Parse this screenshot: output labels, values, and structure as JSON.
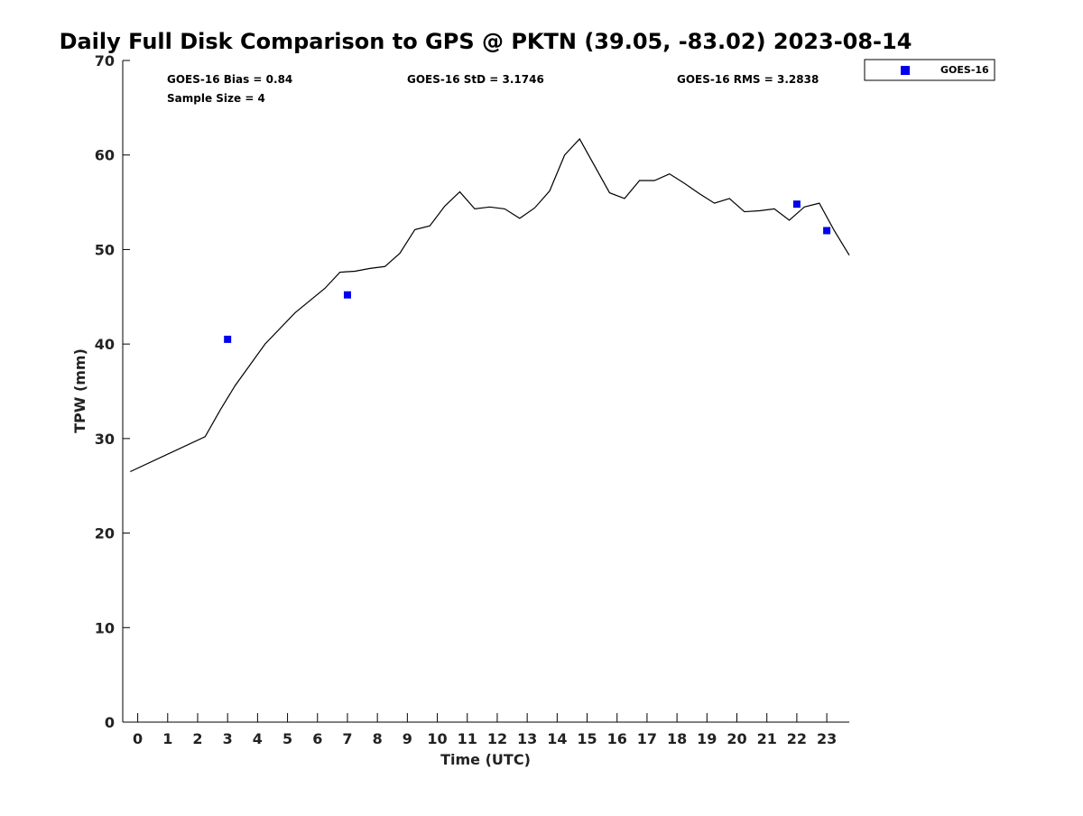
{
  "chart_data": {
    "type": "line",
    "title": "Daily Full Disk Comparison to GPS @ PKTN (39.05, -83.02) 2023-08-14",
    "xlabel": "Time (UTC)",
    "ylabel": "TPW (mm)",
    "xlim": [
      -0.5,
      23.75
    ],
    "ylim": [
      0,
      70
    ],
    "x_ticks": [
      0,
      1,
      2,
      3,
      4,
      5,
      6,
      7,
      8,
      9,
      10,
      11,
      12,
      13,
      14,
      15,
      16,
      17,
      18,
      19,
      20,
      21,
      22,
      23
    ],
    "y_ticks": [
      0,
      10,
      20,
      30,
      40,
      50,
      60,
      70
    ],
    "grid": false,
    "legend_position": "top-right",
    "stats": {
      "bias": "GOES-16 Bias = 0.84",
      "sample_size": "Sample Size = 4",
      "std": "GOES-16 StD = 3.1746",
      "rms": "GOES-16 RMS = 3.2838"
    },
    "series": [
      {
        "style": "line",
        "color": "#000000",
        "x": [
          -0.25,
          2.25,
          2.75,
          3.25,
          4.25,
          5.25,
          6.25,
          6.75,
          7.25,
          7.75,
          8.25,
          8.75,
          9.25,
          9.75,
          10.25,
          10.75,
          11.25,
          11.75,
          12.25,
          12.75,
          13.25,
          13.75,
          14.25,
          14.75,
          15.75,
          16.25,
          16.75,
          17.25,
          17.75,
          18.25,
          18.75,
          19.25,
          19.75,
          20.25,
          20.75,
          21.25,
          21.75,
          22.25,
          22.75,
          23.25,
          23.75
        ],
        "y": [
          26.5,
          30.2,
          33.0,
          35.6,
          40.0,
          43.3,
          45.9,
          47.6,
          47.7,
          48.0,
          48.2,
          49.6,
          52.1,
          52.5,
          54.6,
          56.1,
          54.3,
          54.5,
          54.3,
          53.3,
          54.4,
          56.2,
          60.0,
          61.7,
          56.0,
          55.4,
          57.3,
          57.3,
          58.0,
          57.0,
          55.9,
          54.9,
          55.4,
          54.0,
          54.1,
          54.3,
          53.1,
          54.5,
          54.9,
          52.0,
          49.4
        ]
      },
      {
        "name": "GOES-16",
        "style": "marker",
        "marker": "square",
        "color": "#0000ee",
        "x": [
          3,
          7,
          22,
          23
        ],
        "y": [
          40.5,
          45.2,
          54.8,
          52.0
        ]
      }
    ]
  }
}
